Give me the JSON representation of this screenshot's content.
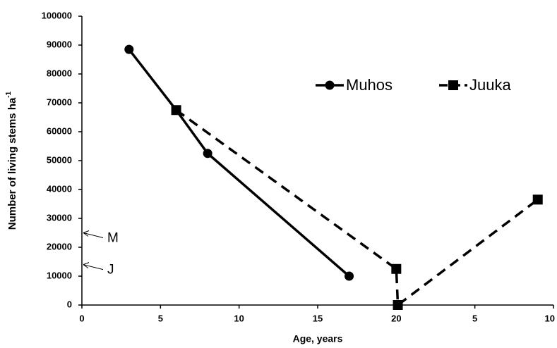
{
  "chart_data": {
    "type": "line",
    "xlabel": "Age, years",
    "ylabel": "Number of living  stems ha",
    "ylabel_sup": "-1",
    "xlim": [
      0,
      30
    ],
    "xticks": [
      0,
      5,
      10,
      15,
      20,
      {
        "value": 25,
        "label": "5"
      },
      {
        "value": 30,
        "label": "10"
      }
    ],
    "ylim": [
      0,
      100000
    ],
    "yticks": [
      0,
      10000,
      20000,
      30000,
      40000,
      50000,
      60000,
      70000,
      80000,
      90000,
      100000
    ],
    "legend": "upper right",
    "series": [
      {
        "name": "Muhos",
        "color": "#000000",
        "marker": "circle",
        "line_style": "solid",
        "x": [
          3,
          6,
          8,
          17
        ],
        "values": [
          88500,
          67500,
          52500,
          10000
        ]
      },
      {
        "name": "Juuka",
        "color": "#000000",
        "marker": "square",
        "line_style": "dashed",
        "x": [
          6,
          20,
          20.1,
          29
        ],
        "values": [
          67500,
          12500,
          0,
          36500
        ]
      }
    ],
    "annotations": [
      {
        "text": "M",
        "y": 25000
      },
      {
        "text": "J",
        "y": 14000
      }
    ]
  }
}
